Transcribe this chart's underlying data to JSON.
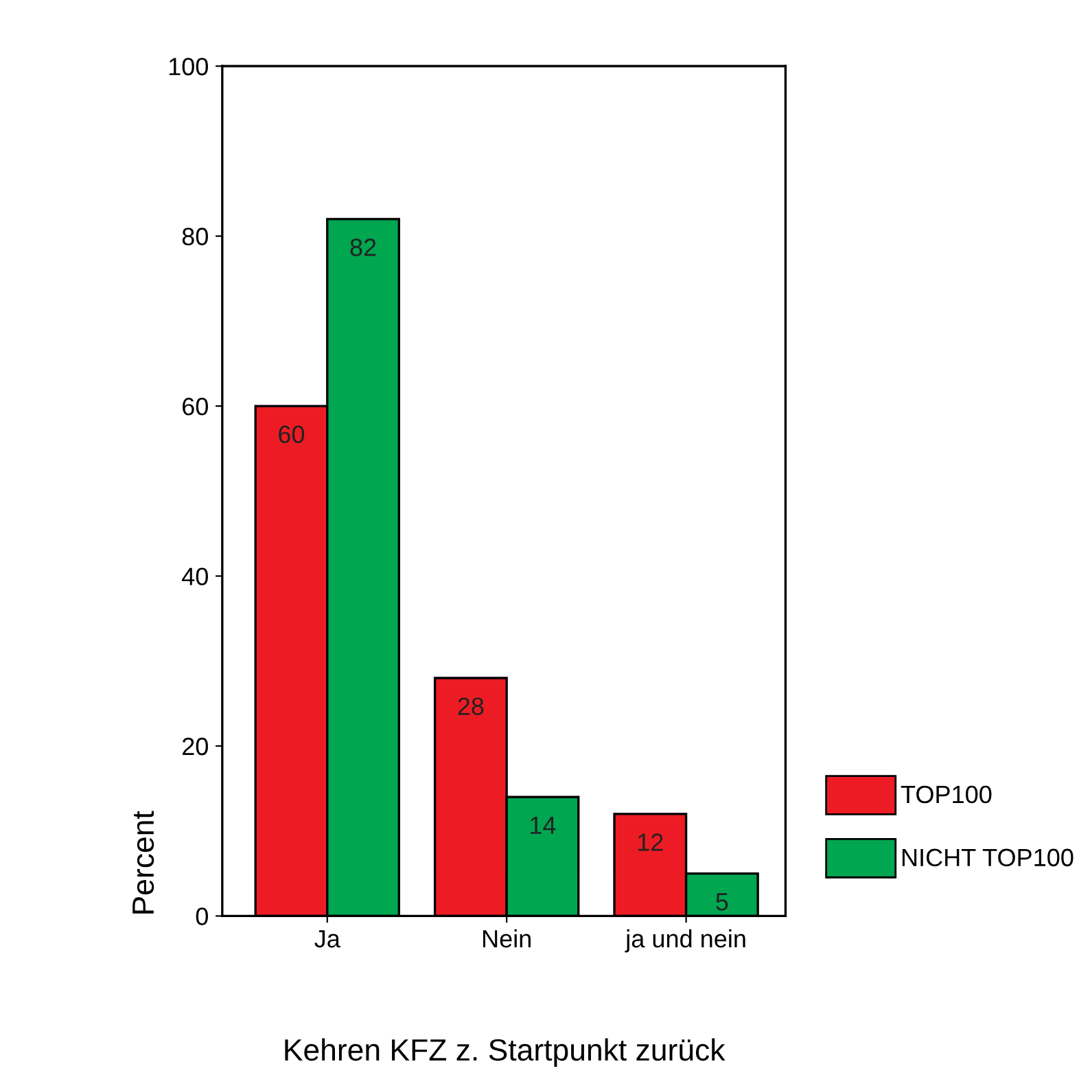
{
  "chart_data": {
    "type": "bar",
    "xlabel": "Kehren KFZ z. Startpunkt zurück",
    "ylabel": "Percent",
    "categories": [
      "Ja",
      "Nein",
      "ja und nein"
    ],
    "series": [
      {
        "name": "TOP100",
        "color": "#ed1c24",
        "values": [
          60,
          28,
          12
        ]
      },
      {
        "name": "NICHT TOP100",
        "color": "#00a650",
        "values": [
          82,
          14,
          5
        ]
      }
    ],
    "ylim": [
      0,
      100
    ],
    "yticks": [
      0,
      20,
      40,
      60,
      80,
      100
    ],
    "data_labels": true,
    "grid": false,
    "legend": "bottom right"
  }
}
